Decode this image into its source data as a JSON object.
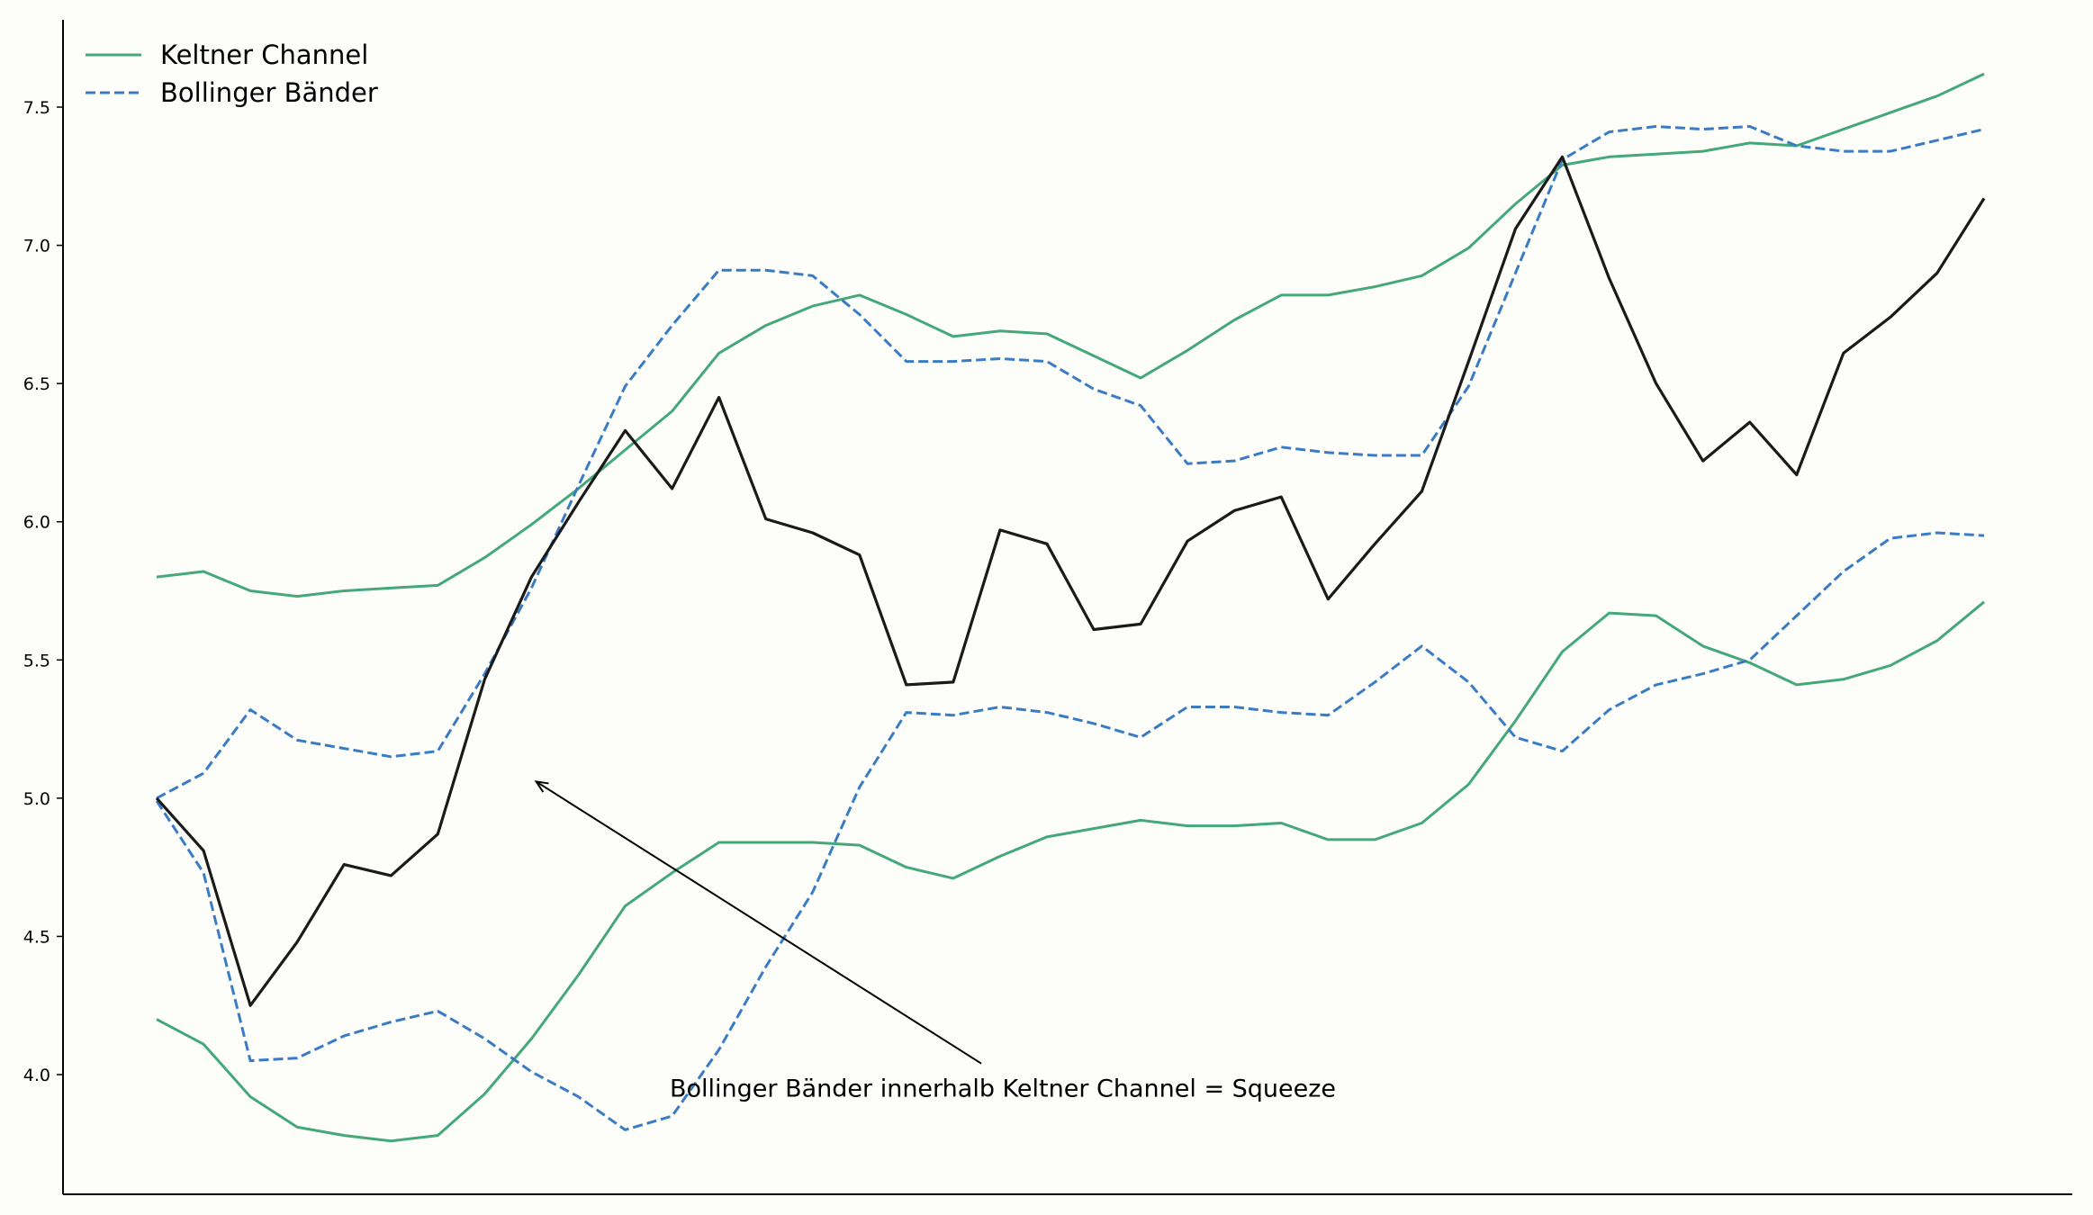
{
  "chart_data": {
    "type": "line",
    "title": "",
    "xlabel": "",
    "ylabel": "",
    "ylim": [
      3.55,
      7.82
    ],
    "y_ticks": [
      "4.0",
      "4.5",
      "5.0",
      "5.5",
      "6.0",
      "6.5",
      "7.0",
      "7.5"
    ],
    "x_ticks_visible": false,
    "grid": false,
    "legend_position": "top-left",
    "x": [
      0,
      1,
      2,
      3,
      4,
      5,
      6,
      7,
      8,
      9,
      10,
      11,
      12,
      13,
      14,
      15,
      16,
      17,
      18,
      19,
      20,
      21,
      22,
      23,
      24,
      25,
      26,
      27,
      28,
      29,
      30,
      31,
      32,
      33,
      34,
      35,
      36,
      37,
      38,
      39
    ],
    "series": [
      {
        "name": "",
        "role": "price",
        "color": "#1a1a1a",
        "style": "solid",
        "values": [
          5.0,
          4.81,
          4.25,
          4.48,
          4.76,
          4.72,
          4.87,
          5.43,
          5.8,
          6.07,
          6.33,
          6.12,
          6.45,
          6.01,
          5.96,
          5.88,
          5.41,
          5.42,
          5.97,
          5.92,
          5.61,
          5.63,
          5.93,
          6.04,
          6.09,
          5.72,
          5.92,
          6.11,
          6.58,
          7.06,
          7.32,
          6.88,
          6.5,
          6.22,
          6.36,
          6.17,
          6.61,
          6.74,
          6.9,
          7.17
        ]
      },
      {
        "name": "Keltner Channel",
        "role": "upper",
        "color": "#44a87a",
        "style": "solid",
        "values": [
          5.8,
          5.82,
          5.75,
          5.73,
          5.75,
          5.76,
          5.77,
          5.87,
          5.99,
          6.12,
          6.26,
          6.4,
          6.61,
          6.71,
          6.78,
          6.82,
          6.75,
          6.67,
          6.69,
          6.68,
          6.6,
          6.52,
          6.62,
          6.73,
          6.82,
          6.82,
          6.85,
          6.89,
          6.99,
          7.15,
          7.29,
          7.32,
          7.33,
          7.34,
          7.37,
          7.36,
          7.42,
          7.48,
          7.54,
          7.62
        ]
      },
      {
        "name": "",
        "role": "lower",
        "color": "#44a87a",
        "style": "solid",
        "values": [
          4.2,
          4.11,
          3.92,
          3.81,
          3.78,
          3.76,
          3.78,
          3.93,
          4.13,
          4.36,
          4.61,
          4.73,
          4.84,
          4.84,
          4.84,
          4.83,
          4.75,
          4.71,
          4.79,
          4.86,
          4.89,
          4.92,
          4.9,
          4.9,
          4.91,
          4.85,
          4.85,
          4.91,
          5.05,
          5.28,
          5.53,
          5.67,
          5.66,
          5.55,
          5.49,
          5.41,
          5.43,
          5.48,
          5.57,
          5.71
        ]
      },
      {
        "name": "Bollinger Bänder",
        "role": "upper",
        "color": "#3a7cc4",
        "style": "dashed",
        "values": [
          5.0,
          5.09,
          5.32,
          5.21,
          5.18,
          5.15,
          5.17,
          5.45,
          5.76,
          6.13,
          6.49,
          6.71,
          6.91,
          6.91,
          6.89,
          6.75,
          6.58,
          6.58,
          6.59,
          6.58,
          6.48,
          6.42,
          6.21,
          6.22,
          6.27,
          6.25,
          6.24,
          6.24,
          6.49,
          6.9,
          7.31,
          7.41,
          7.43,
          7.42,
          7.43,
          7.36,
          7.34,
          7.34,
          7.38,
          7.42
        ]
      },
      {
        "name": "",
        "role": "lower",
        "color": "#3a7cc4",
        "style": "dashed",
        "values": [
          4.99,
          4.73,
          4.05,
          4.06,
          4.14,
          4.19,
          4.23,
          4.13,
          4.01,
          3.92,
          3.8,
          3.85,
          4.09,
          4.39,
          4.66,
          5.04,
          5.31,
          5.3,
          5.33,
          5.31,
          5.27,
          5.22,
          5.33,
          5.33,
          5.31,
          5.3,
          5.42,
          5.55,
          5.42,
          5.22,
          5.17,
          5.32,
          5.41,
          5.45,
          5.5,
          5.66,
          5.82,
          5.94,
          5.96,
          5.95
        ]
      }
    ],
    "legend": [
      {
        "label": "Keltner Channel",
        "color": "#44a87a",
        "style": "solid"
      },
      {
        "label": "Bollinger Bänder",
        "color": "#3a7cc4",
        "style": "dashed"
      }
    ],
    "annotation": {
      "text": "Bollinger Bänder innerhalb Keltner Channel = Squeeze",
      "arrow_target": {
        "x": 8.1,
        "y": 5.06
      },
      "arrow_tail": {
        "x": 17.6,
        "y": 4.04
      }
    }
  }
}
